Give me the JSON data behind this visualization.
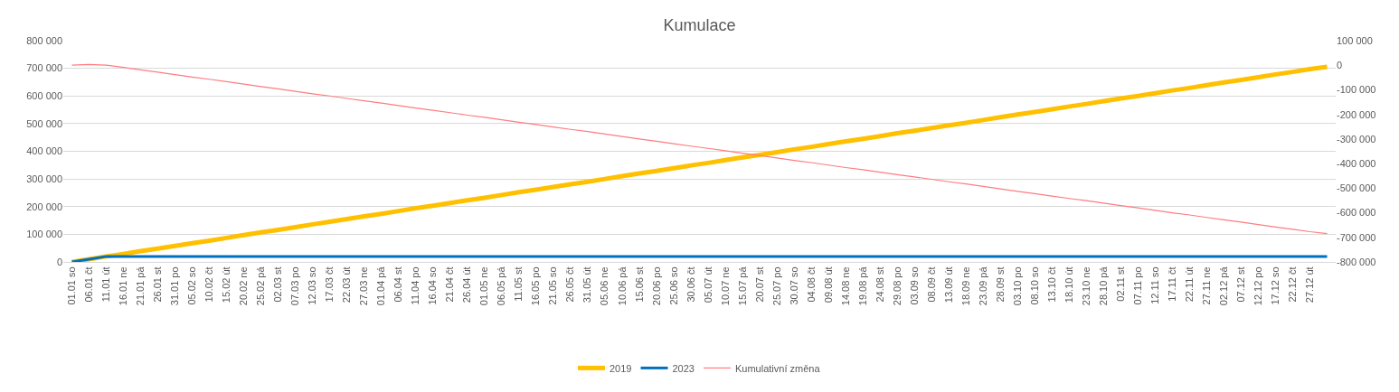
{
  "chart_data": {
    "type": "line",
    "title": "Kumulace",
    "categories": [
      "01.01 so",
      "06.01 čt",
      "11.01 út",
      "16.01 ne",
      "21.01 pá",
      "26.01 st",
      "31.01 po",
      "05.02 so",
      "10.02 čt",
      "15.02 út",
      "20.02 ne",
      "25.02 pá",
      "02.03 st",
      "07.03 po",
      "12.03 so",
      "17.03 čt",
      "22.03 út",
      "27.03 ne",
      "01.04 pá",
      "06.04 st",
      "11.04 po",
      "16.04 so",
      "21.04 čt",
      "26.04 út",
      "01.05 ne",
      "06.05 pá",
      "11.05 st",
      "16.05 po",
      "21.05 so",
      "26.05 čt",
      "31.05 út",
      "05.06 ne",
      "10.06 pá",
      "15.06 st",
      "20.06 po",
      "25.06 so",
      "30.06 čt",
      "05.07 út",
      "10.07 ne",
      "15.07 pá",
      "20.07 st",
      "25.07 po",
      "30.07 so",
      "04.08 čt",
      "09.08 út",
      "14.08 ne",
      "19.08 pá",
      "24.08 st",
      "29.08 po",
      "03.09 so",
      "08.09 čt",
      "13.09 út",
      "18.09 ne",
      "23.09 pá",
      "28.09 st",
      "03.10 po",
      "08.10 so",
      "13.10 čt",
      "18.10 út",
      "23.10 ne",
      "28.10 pá",
      "02.11 st",
      "07.11 po",
      "12.11 so",
      "17.11 čt",
      "22.11 út",
      "27.11 ne",
      "02.12 pá",
      "07.12 st",
      "12.12 po",
      "17.12 so",
      "22.12 čt",
      "27.12 út",
      null
    ],
    "series": [
      {
        "name": "2019",
        "color": "#ffc000",
        "values": [
          0,
          10000,
          20000,
          29000,
          39000,
          48000,
          58000,
          68000,
          77000,
          87000,
          97000,
          107000,
          116000,
          126000,
          136000,
          145000,
          155000,
          165000,
          174000,
          184000,
          194000,
          203000,
          213000,
          223000,
          232000,
          242000,
          252000,
          261000,
          271000,
          281000,
          290000,
          300000,
          310000,
          320000,
          329000,
          339000,
          349000,
          358000,
          368000,
          378000,
          387000,
          397000,
          407000,
          416000,
          426000,
          436000,
          445000,
          455000,
          465000,
          474000,
          484000,
          494000,
          503000,
          513000,
          523000,
          533000,
          542000,
          552000,
          562000,
          571000,
          581000,
          591000,
          600000,
          610000,
          620000,
          629000,
          639000,
          649000,
          658000,
          668000,
          678000,
          687000,
          697000,
          705000
        ]
      },
      {
        "name": "2023",
        "color": "#0070c0",
        "values": [
          0,
          10000,
          20000,
          20000,
          20000,
          20000,
          20000,
          20000,
          20000,
          20000,
          20000,
          20000,
          20000,
          20000,
          20000,
          20000,
          20000,
          20000,
          20000,
          20000,
          20000,
          20000,
          20000,
          20000,
          20000,
          20000,
          20000,
          20000,
          20000,
          20000,
          20000,
          20000,
          20000,
          20000,
          20000,
          20000,
          20000,
          20000,
          20000,
          20000,
          20000,
          20000,
          20000,
          20000,
          20000,
          20000,
          20000,
          20000,
          20000,
          20000,
          20000,
          20000,
          20000,
          20000,
          20000,
          20000,
          20000,
          20000,
          20000,
          20000,
          20000,
          20000,
          20000,
          20000,
          20000,
          20000,
          20000,
          20000,
          20000,
          20000,
          20000,
          20000,
          20000,
          20000
        ]
      },
      {
        "name": "Kumulativní změna",
        "color": "#ff7c80",
        "axis": "y2",
        "values": [
          0,
          3000,
          0,
          -9000,
          -19000,
          -28000,
          -38000,
          -48000,
          -57000,
          -67000,
          -77000,
          -87000,
          -96000,
          -106000,
          -116000,
          -125000,
          -135000,
          -145000,
          -154000,
          -164000,
          -174000,
          -183000,
          -193000,
          -203000,
          -212000,
          -222000,
          -232000,
          -241000,
          -251000,
          -261000,
          -270000,
          -280000,
          -290000,
          -300000,
          -309000,
          -319000,
          -329000,
          -338000,
          -348000,
          -358000,
          -367000,
          -377000,
          -387000,
          -396000,
          -406000,
          -416000,
          -425000,
          -435000,
          -445000,
          -454000,
          -464000,
          -474000,
          -483000,
          -493000,
          -503000,
          -513000,
          -522000,
          -532000,
          -542000,
          -551000,
          -561000,
          -571000,
          -580000,
          -590000,
          -600000,
          -609000,
          -619000,
          -629000,
          -638000,
          -648000,
          -658000,
          -667000,
          -677000,
          -685000
        ]
      }
    ],
    "ylim": [
      0,
      800000
    ],
    "yticks": [
      0,
      {
        "value": 100000,
        "label": "100 000"
      },
      {
        "value": 200000,
        "label": "200 000"
      },
      {
        "value": 300000,
        "label": "300 000"
      },
      {
        "value": 400000,
        "label": "400 000"
      },
      {
        "value": 500000,
        "label": "500 000"
      },
      {
        "value": 600000,
        "label": "600 000"
      },
      {
        "value": 700000,
        "label": "700 000"
      },
      {
        "value": 800000,
        "label": "800 000"
      }
    ],
    "y2lim": [
      -800000,
      100000
    ],
    "y2ticks": [
      {
        "value": -800000,
        "label": "-800 000"
      },
      {
        "value": -700000,
        "label": "-700 000"
      },
      {
        "value": -600000,
        "label": "-600 000"
      },
      {
        "value": -500000,
        "label": "-500 000"
      },
      {
        "value": -400000,
        "label": "-400 000"
      },
      {
        "value": -300000,
        "label": "-300 000"
      },
      {
        "value": -200000,
        "label": "-200 000"
      },
      {
        "value": -100000,
        "label": "-100 000"
      },
      0,
      {
        "value": 100000,
        "label": "100 000"
      }
    ],
    "grid": "y",
    "legend": "bottom",
    "marker": "none",
    "line_style": "solid"
  }
}
